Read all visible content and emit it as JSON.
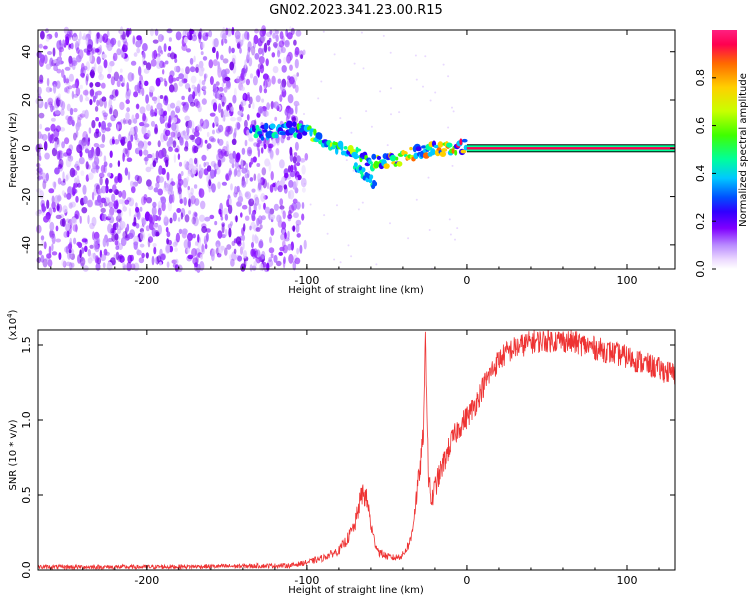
{
  "title": "GN02.2023.341.23.00.R15",
  "chart_data": [
    {
      "type": "heatmap",
      "xlabel": "Height of straight line (km)",
      "ylabel": "Frequency (Hz)",
      "xlim": [
        -268,
        130
      ],
      "ylim": [
        -50,
        49
      ],
      "xticks": [
        "-200",
        "-100",
        "0",
        "100"
      ],
      "xtick_values": [
        -200,
        -100,
        0,
        100
      ],
      "yticks": [
        "-40",
        "-20",
        "0",
        "20",
        "40"
      ],
      "ytick_values": [
        -40,
        -20,
        0,
        20,
        40
      ],
      "grid": false,
      "noise_region_x": [
        -268,
        -105
      ],
      "signal_ridge": {
        "x": [
          -135,
          -110,
          -100,
          -90,
          -80,
          -70,
          -60,
          -50,
          -40,
          -30,
          -20,
          -10,
          0,
          10,
          130
        ],
        "y": [
          6,
          8,
          7,
          4,
          0,
          -2,
          -6,
          -5,
          -4,
          -1,
          0,
          0,
          1,
          0,
          0
        ]
      },
      "branch": {
        "x": [
          -70,
          -65,
          -60,
          -57
        ],
        "y": [
          -7,
          -10,
          -13,
          -16
        ]
      },
      "carrier_frequency_hz": 0,
      "carrier_x_range": [
        0,
        130
      ],
      "colorbar": {
        "label": "Normalized spectral amplitude",
        "ticks": [
          "0.0",
          "0.2",
          "0.4",
          "0.6",
          "0.8"
        ],
        "tick_values": [
          0,
          0.2,
          0.4,
          0.6,
          0.8
        ],
        "range": [
          0,
          1
        ],
        "colormap": [
          "#ffffff",
          "#ecd9ff",
          "#b98bff",
          "#8000ff",
          "#3000ff",
          "#0050ff",
          "#00c8ff",
          "#00ff9a",
          "#40ff00",
          "#c8ff00",
          "#ffd000",
          "#ff6a00",
          "#ff0050",
          "#ff2080"
        ]
      }
    },
    {
      "type": "line",
      "xlabel": "Height of straight line (km)",
      "ylabel": "SNR (10 * v/v)",
      "multiplier": "(x10",
      "multiplier_exp": "4",
      "multiplier_close": ")",
      "xlim": [
        -268,
        130
      ],
      "ylim": [
        0,
        1.6
      ],
      "xticks": [
        "-200",
        "-100",
        "0",
        "100"
      ],
      "xtick_values": [
        -200,
        -100,
        0,
        100
      ],
      "yticks": [
        "0.0",
        "0.5",
        "1.0",
        "1.5"
      ],
      "ytick_values": [
        0,
        0.5,
        1.0,
        1.5
      ],
      "grid": false,
      "color": "#ee3333",
      "x": [
        -268,
        -200,
        -150,
        -110,
        -100,
        -90,
        -80,
        -75,
        -70,
        -67,
        -65,
        -62,
        -60,
        -58,
        -55,
        -50,
        -45,
        -40,
        -35,
        -32,
        -29,
        -27,
        -26,
        -25,
        -24,
        -22,
        -20,
        -15,
        -10,
        -5,
        0,
        5,
        10,
        15,
        20,
        25,
        30,
        40,
        50,
        60,
        70,
        80,
        90,
        100,
        110,
        120,
        130
      ],
      "y": [
        0.02,
        0.02,
        0.025,
        0.03,
        0.05,
        0.08,
        0.13,
        0.2,
        0.3,
        0.45,
        0.52,
        0.45,
        0.3,
        0.2,
        0.12,
        0.09,
        0.08,
        0.1,
        0.2,
        0.45,
        0.7,
        0.95,
        1.55,
        1.1,
        0.6,
        0.45,
        0.55,
        0.7,
        0.85,
        0.95,
        1.02,
        1.1,
        1.22,
        1.32,
        1.4,
        1.45,
        1.48,
        1.52,
        1.53,
        1.53,
        1.51,
        1.48,
        1.45,
        1.42,
        1.38,
        1.34,
        1.3
      ],
      "noise_amplitude": 0.08
    }
  ]
}
